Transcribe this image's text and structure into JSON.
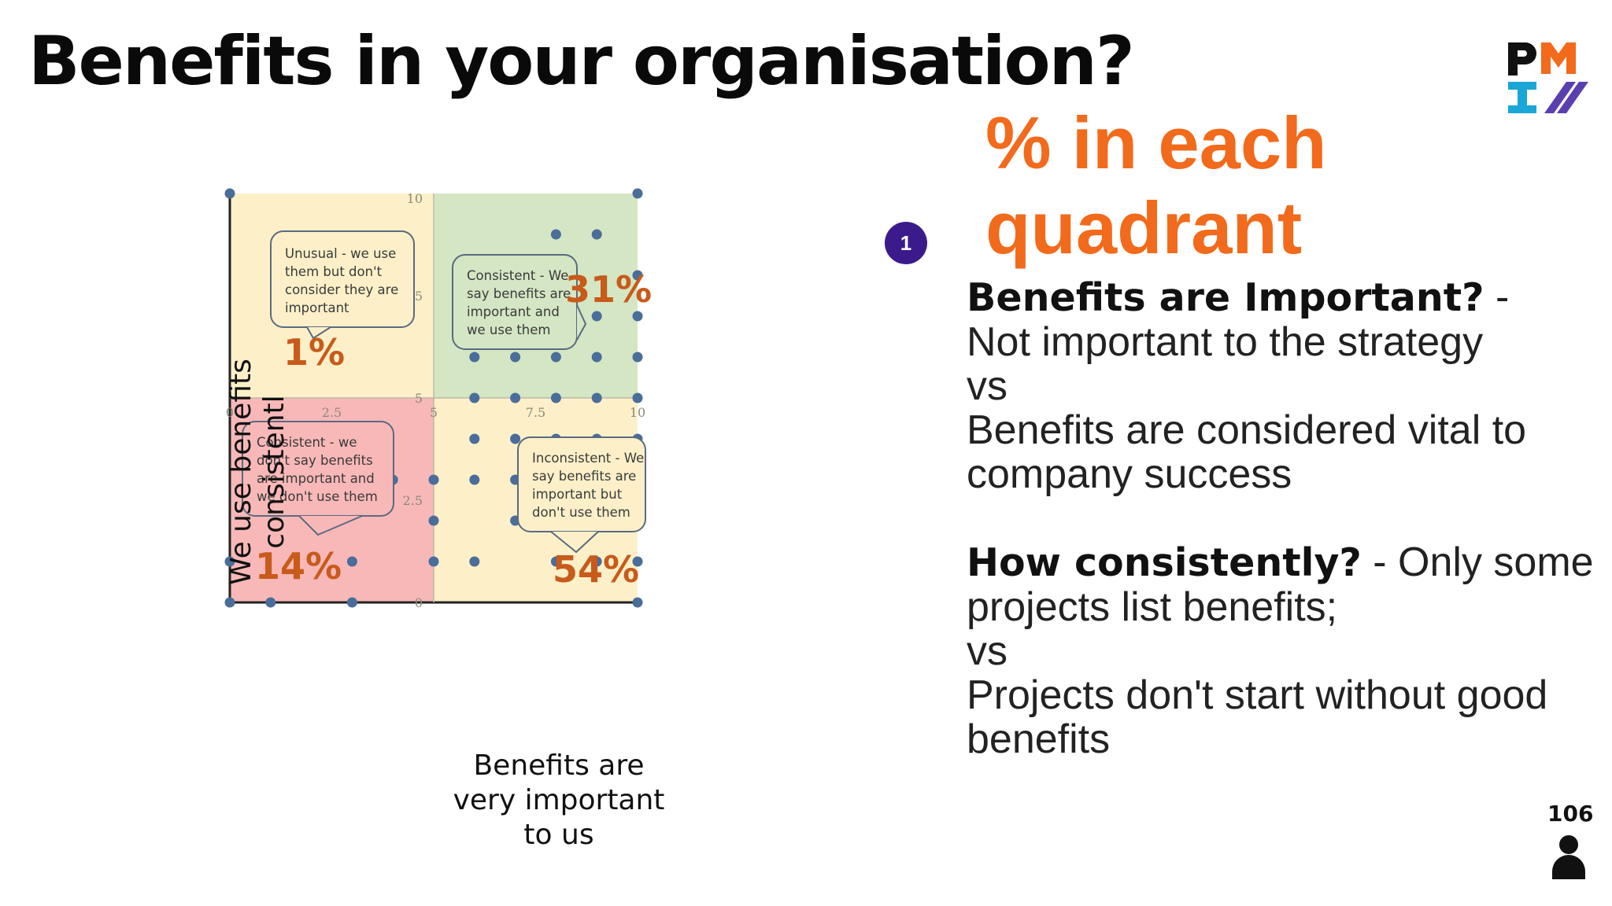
{
  "slide": {
    "title": "Benefits in your organisation?",
    "heading_line1": "% in each",
    "heading_line2": "quadrant",
    "step_badge": "1",
    "page_number": "106"
  },
  "right_text": {
    "q1_label": "Benefits are Important?",
    "q1_sep": " -",
    "q1_low": "Not important to the strategy",
    "vs1": "vs",
    "q1_high": "Benefits are considered vital to company success",
    "q2_label": "How consistently?",
    "q2_low": " - Only some projects list benefits;",
    "vs2": "vs",
    "q2_high": "Projects don't start without good benefits"
  },
  "chart_data": {
    "type": "scatter",
    "xlabel_lines": [
      "Benefits are",
      "very important",
      "to us"
    ],
    "ylabel_lines": [
      "We use benefits",
      "consistentl"
    ],
    "xlim": [
      0,
      10
    ],
    "ylim": [
      0,
      10
    ],
    "x_ticks": [
      "0",
      "2.5",
      "5",
      "7.5",
      "10"
    ],
    "y_ticks": [
      "0",
      "2.5",
      "5",
      "7.5",
      "10"
    ],
    "quadrants": [
      {
        "name": "top-left",
        "percent": "1%",
        "color": "#fdf0c9",
        "callout": [
          "Unusual - we use",
          "them but don't",
          "consider they are",
          "important"
        ]
      },
      {
        "name": "top-right",
        "percent": "31%",
        "color": "#d4e6c4",
        "callout": [
          "Consistent - We",
          "say benefits are",
          "important and",
          "we use them"
        ]
      },
      {
        "name": "bottom-left",
        "percent": "14%",
        "color": "#f8b8b8",
        "callout": [
          "Consistent - we",
          "don't say benefits",
          "are important and",
          "we don't use them"
        ]
      },
      {
        "name": "bottom-right",
        "percent": "54%",
        "color": "#fdf0c9",
        "callout": [
          "Inconsistent - We",
          "say benefits are",
          "important but",
          "don't use them"
        ]
      }
    ],
    "points": [
      [
        0,
        10
      ],
      [
        10,
        10
      ],
      [
        8,
        9
      ],
      [
        9,
        9
      ],
      [
        8,
        8
      ],
      [
        10,
        8
      ],
      [
        7,
        7
      ],
      [
        9,
        7
      ],
      [
        10,
        7
      ],
      [
        6,
        6
      ],
      [
        7,
        6
      ],
      [
        8,
        6
      ],
      [
        9,
        6
      ],
      [
        10,
        6
      ],
      [
        6,
        5
      ],
      [
        7,
        5
      ],
      [
        8,
        5
      ],
      [
        9,
        5
      ],
      [
        10,
        5
      ],
      [
        6,
        4
      ],
      [
        7,
        4
      ],
      [
        8,
        4
      ],
      [
        9,
        4
      ],
      [
        10,
        4
      ],
      [
        4,
        3
      ],
      [
        5,
        3
      ],
      [
        6,
        3
      ],
      [
        7,
        3
      ],
      [
        8,
        3
      ],
      [
        9,
        3
      ],
      [
        10,
        3
      ],
      [
        2,
        2
      ],
      [
        5,
        2
      ],
      [
        7,
        2
      ],
      [
        8,
        2
      ],
      [
        9,
        2
      ],
      [
        0,
        1
      ],
      [
        3,
        1
      ],
      [
        5,
        1
      ],
      [
        6,
        1
      ],
      [
        8,
        1
      ],
      [
        9,
        1
      ],
      [
        10,
        1
      ],
      [
        0,
        0
      ],
      [
        1,
        0
      ],
      [
        3,
        0
      ],
      [
        10,
        0
      ]
    ],
    "point_color": "#4a6d9a",
    "percent_color": "#c85a1a"
  }
}
